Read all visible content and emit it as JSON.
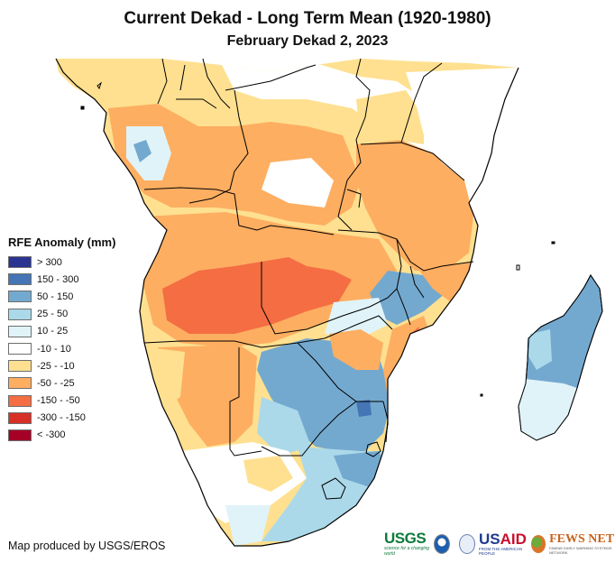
{
  "header": {
    "title": "Current Dekad - Long Term Mean (1920-1980)",
    "subtitle": "February Dekad 2, 2023"
  },
  "legend": {
    "title": "RFE Anomaly (mm)",
    "items": [
      {
        "label": "> 300",
        "color": "#2b3491"
      },
      {
        "label": "150 - 300",
        "color": "#4575b4"
      },
      {
        "label": "50 - 150",
        "color": "#74a9cf"
      },
      {
        "label": "25 - 50",
        "color": "#abd9e9"
      },
      {
        "label": "10 - 25",
        "color": "#e0f3f8"
      },
      {
        "label": "-10 - 10",
        "color": "#ffffff"
      },
      {
        "label": "-25 - -10",
        "color": "#fee090"
      },
      {
        "label": "-50 - -25",
        "color": "#fdae61"
      },
      {
        "label": "-150 - -50",
        "color": "#f46d43"
      },
      {
        "label": "-300 - -150",
        "color": "#d73027"
      },
      {
        "label": "< -300",
        "color": "#a50026"
      }
    ]
  },
  "footer": {
    "credit": "Map produced by USGS/EROS",
    "logos": {
      "usgs": "USGS",
      "usgs_tagline": "science for a changing world",
      "usaid_prefix": "US",
      "usaid_suffix": "AID",
      "usaid_tagline": "FROM THE AMERICAN PEOPLE",
      "fews": "FEWS NET",
      "fews_tagline": "FAMINE EARLY WARNING SYSTEMS NETWORK"
    }
  },
  "map": {
    "region": "Southern and Central Africa with Madagascar",
    "regions": [
      {
        "name": "west-sahel-north",
        "anomaly_class": "-25 - -10"
      },
      {
        "name": "central-africa-north",
        "anomaly_class": "-10 - 10"
      },
      {
        "name": "congo-basin",
        "anomaly_class": "-50 - -25"
      },
      {
        "name": "gabon-congo-coast",
        "anomaly_class": "10 - 25"
      },
      {
        "name": "east-africa-kenya-somalia",
        "anomaly_class": "-10 - 10"
      },
      {
        "name": "tanzania",
        "anomaly_class": "-50 - -25"
      },
      {
        "name": "angola-zambia-band",
        "anomaly_class": "-150 - -50"
      },
      {
        "name": "namibia",
        "anomaly_class": "-50 - -25"
      },
      {
        "name": "botswana-zimbabwe",
        "anomaly_class": "50 - 150"
      },
      {
        "name": "malawi-mozambique-north",
        "anomaly_class": "50 - 150"
      },
      {
        "name": "mozambique-coast",
        "anomaly_class": "-50 - -25"
      },
      {
        "name": "south-africa-west",
        "anomaly_class": "-25 - -10"
      },
      {
        "name": "south-africa-east",
        "anomaly_class": "25 - 50"
      },
      {
        "name": "madagascar-north",
        "anomaly_class": "50 - 150"
      },
      {
        "name": "madagascar-south",
        "anomaly_class": "10 - 25"
      }
    ]
  }
}
